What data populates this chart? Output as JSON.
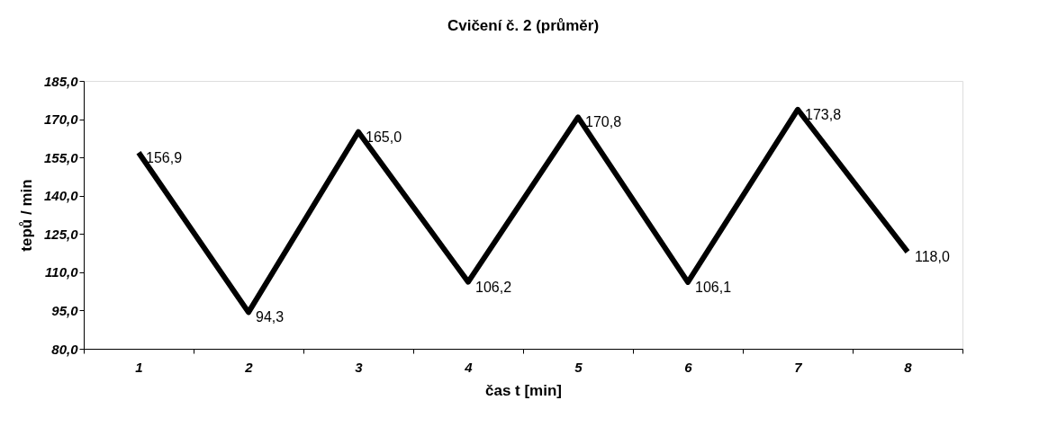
{
  "chart_data": {
    "type": "line",
    "title": "Cvičení č. 2 (průměr)",
    "xlabel": "čas t [min]",
    "ylabel": "tepů / min",
    "categories": [
      "1",
      "2",
      "3",
      "4",
      "5",
      "6",
      "7",
      "8"
    ],
    "values": [
      156.9,
      94.3,
      165.0,
      106.2,
      170.8,
      106.1,
      173.8,
      118.0
    ],
    "value_labels": [
      "156,9",
      "94,3",
      "165,0",
      "106,2",
      "170,8",
      "106,1",
      "173,8",
      "118,0"
    ],
    "color": "#000000",
    "ylim": [
      80,
      185
    ],
    "yticks": [
      {
        "value": 80,
        "label": "80,0"
      },
      {
        "value": 95,
        "label": "95,0"
      },
      {
        "value": 110,
        "label": "110,0"
      },
      {
        "value": 125,
        "label": "125,0"
      },
      {
        "value": 140,
        "label": "140,0"
      },
      {
        "value": 155,
        "label": "155,0"
      },
      {
        "value": 170,
        "label": "170,0"
      },
      {
        "value": 185,
        "label": "185,0"
      }
    ],
    "grid": false,
    "marker": "none",
    "line_style": "solid"
  }
}
